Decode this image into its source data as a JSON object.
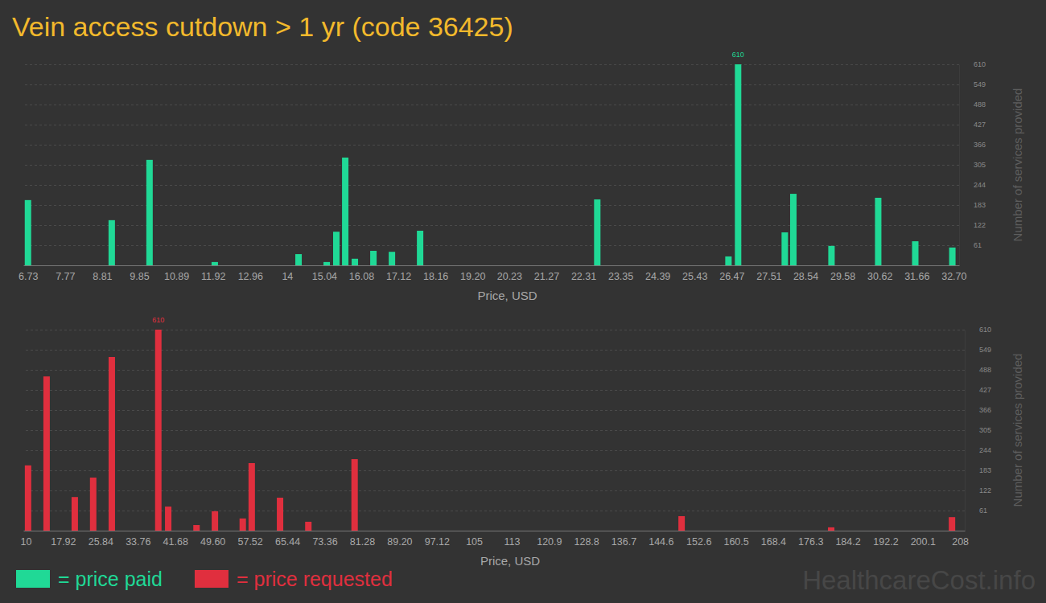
{
  "chart_data": [
    {
      "type": "bar",
      "title": "Vein access cutdown > 1 yr (code 36425)",
      "xlabel": "Price, USD",
      "ylabel": "Number of services provided",
      "x": [
        6.73,
        9.08,
        10.14,
        11.97,
        14.32,
        15.11,
        15.38,
        15.63,
        15.9,
        16.42,
        16.94,
        17.73,
        22.7,
        26.38,
        26.65,
        27.96,
        28.2,
        29.27,
        30.58,
        31.62,
        32.66
      ],
      "series": [
        {
          "name": "= price paid",
          "color": "#20d996",
          "values": [
            198,
            137,
            320,
            10,
            34,
            10,
            102,
            327,
            20,
            44,
            41,
            105,
            200,
            27,
            610,
            100,
            217,
            59,
            205,
            73,
            54
          ],
          "value_labels": [
            null,
            null,
            null,
            null,
            null,
            null,
            null,
            null,
            null,
            null,
            null,
            null,
            null,
            null,
            "610",
            null,
            null,
            null,
            null,
            null,
            null
          ]
        }
      ],
      "xlim": [
        6.6,
        32.85
      ],
      "xticks": [
        6.73,
        7.77,
        8.81,
        9.85,
        10.89,
        11.92,
        12.96,
        14,
        15.04,
        16.08,
        17.12,
        18.16,
        {
          "value": 19.2,
          "label": "19.20"
        },
        20.23,
        21.27,
        22.31,
        23.35,
        24.39,
        25.43,
        26.47,
        27.51,
        28.54,
        29.58,
        30.62,
        31.66,
        {
          "value": 32.7,
          "label": "32.70"
        }
      ],
      "ylim": [
        0,
        610
      ],
      "yticks": [
        61,
        122,
        183,
        244,
        305,
        366,
        427,
        488,
        549,
        610
      ],
      "grid": true,
      "data_labels": true,
      "legend": "bottom left"
    },
    {
      "type": "bar",
      "xlabel": "Price, USD",
      "ylabel": "Number of services provided",
      "x": [
        10.5,
        14.43,
        20.4,
        24.3,
        28.25,
        38.1,
        40.2,
        46.2,
        50.1,
        56,
        57.9,
        63.9,
        69.9,
        79.7,
        149,
        180.7,
        206.3
      ],
      "series": [
        {
          "name": "= price requested",
          "color": "#e02f3e",
          "values": [
            198,
            468,
            102,
            161,
            527,
            610,
            73,
            17,
            59,
            37,
            205,
            100,
            27,
            217,
            44,
            10,
            41
          ],
          "value_labels": [
            null,
            null,
            null,
            null,
            null,
            "610",
            null,
            null,
            null,
            null,
            null,
            null,
            null,
            null,
            null,
            null,
            null
          ]
        }
      ],
      "xlim": [
        9.5,
        209
      ],
      "xticks": [
        10,
        17.92,
        25.84,
        33.76,
        41.68,
        {
          "value": 49.6,
          "label": "49.60"
        },
        57.52,
        65.44,
        73.36,
        81.28,
        {
          "value": 89.2,
          "label": "89.20"
        },
        97.12,
        105,
        113,
        120.9,
        128.8,
        136.7,
        144.6,
        152.6,
        160.5,
        168.4,
        176.3,
        184.2,
        192.2,
        200.1,
        208
      ],
      "ylim": [
        0,
        610
      ],
      "yticks": [
        61,
        122,
        183,
        244,
        305,
        366,
        427,
        488,
        549,
        610
      ],
      "grid": true,
      "data_labels": true,
      "legend": "bottom left"
    }
  ],
  "watermark": "HealthcareCost.info"
}
